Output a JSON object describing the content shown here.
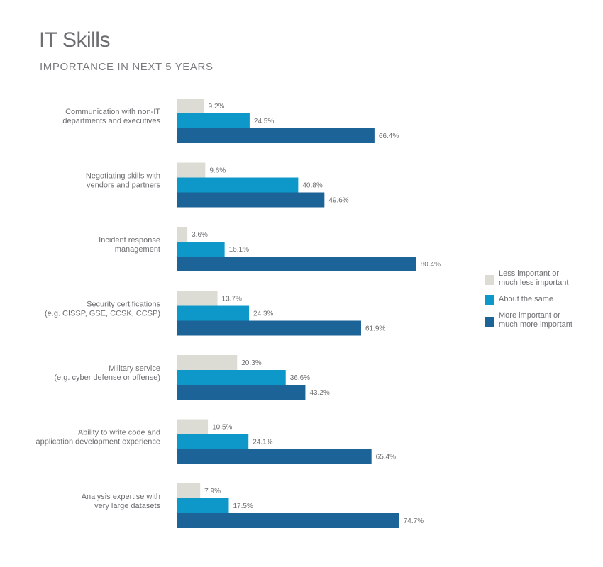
{
  "title": "IT Skills",
  "subtitle": "IMPORTANCE IN NEXT 5 YEARS",
  "chart_data": {
    "type": "bar",
    "orientation": "horizontal",
    "title": "IT Skills",
    "subtitle": "IMPORTANCE IN NEXT 5 YEARS",
    "unit": "%",
    "categories": [
      [
        "Communication with non-IT",
        "departments and executives"
      ],
      [
        "Negotiating skills with",
        "vendors and partners"
      ],
      [
        "Incident response",
        "management"
      ],
      [
        "Security certifications",
        "(e.g. CISSP, GSE, CCSK, CCSP)"
      ],
      [
        "Military service",
        "(e.g. cyber defense or offense)"
      ],
      [
        "Ability to write code and",
        "application development experience"
      ],
      [
        "Analysis expertise with",
        "very large datasets"
      ]
    ],
    "series": [
      {
        "name": "Less important or much less important",
        "legend_lines": [
          "Less important or",
          "much less important"
        ],
        "color": "#dcdcd5",
        "values": [
          9.2,
          9.6,
          3.6,
          13.7,
          20.3,
          10.5,
          7.9
        ],
        "labels": [
          "9.2%",
          "9.6%",
          "3.6%",
          "13.7%",
          "20.3%",
          "10.5%",
          "7.9%"
        ]
      },
      {
        "name": "About the same",
        "legend_lines": [
          "About the same"
        ],
        "color": "#0d98c9",
        "values": [
          24.5,
          40.8,
          16.1,
          24.3,
          36.6,
          24.1,
          17.5
        ],
        "labels": [
          "24.5%",
          "40.8%",
          "16.1%",
          "24.3%",
          "36.6%",
          "24.1%",
          "17.5%"
        ]
      },
      {
        "name": "More important or much more important",
        "legend_lines": [
          "More important or",
          "much more important"
        ],
        "color": "#1c6397",
        "values": [
          66.4,
          49.6,
          80.4,
          61.9,
          43.2,
          65.4,
          74.7
        ],
        "labels": [
          "66.4%",
          "49.6%",
          "80.4%",
          "61.9%",
          "43.2%",
          "65.4%",
          "74.7%"
        ]
      }
    ],
    "xlim": [
      0,
      100
    ],
    "grid": false,
    "legend_position": "right"
  }
}
